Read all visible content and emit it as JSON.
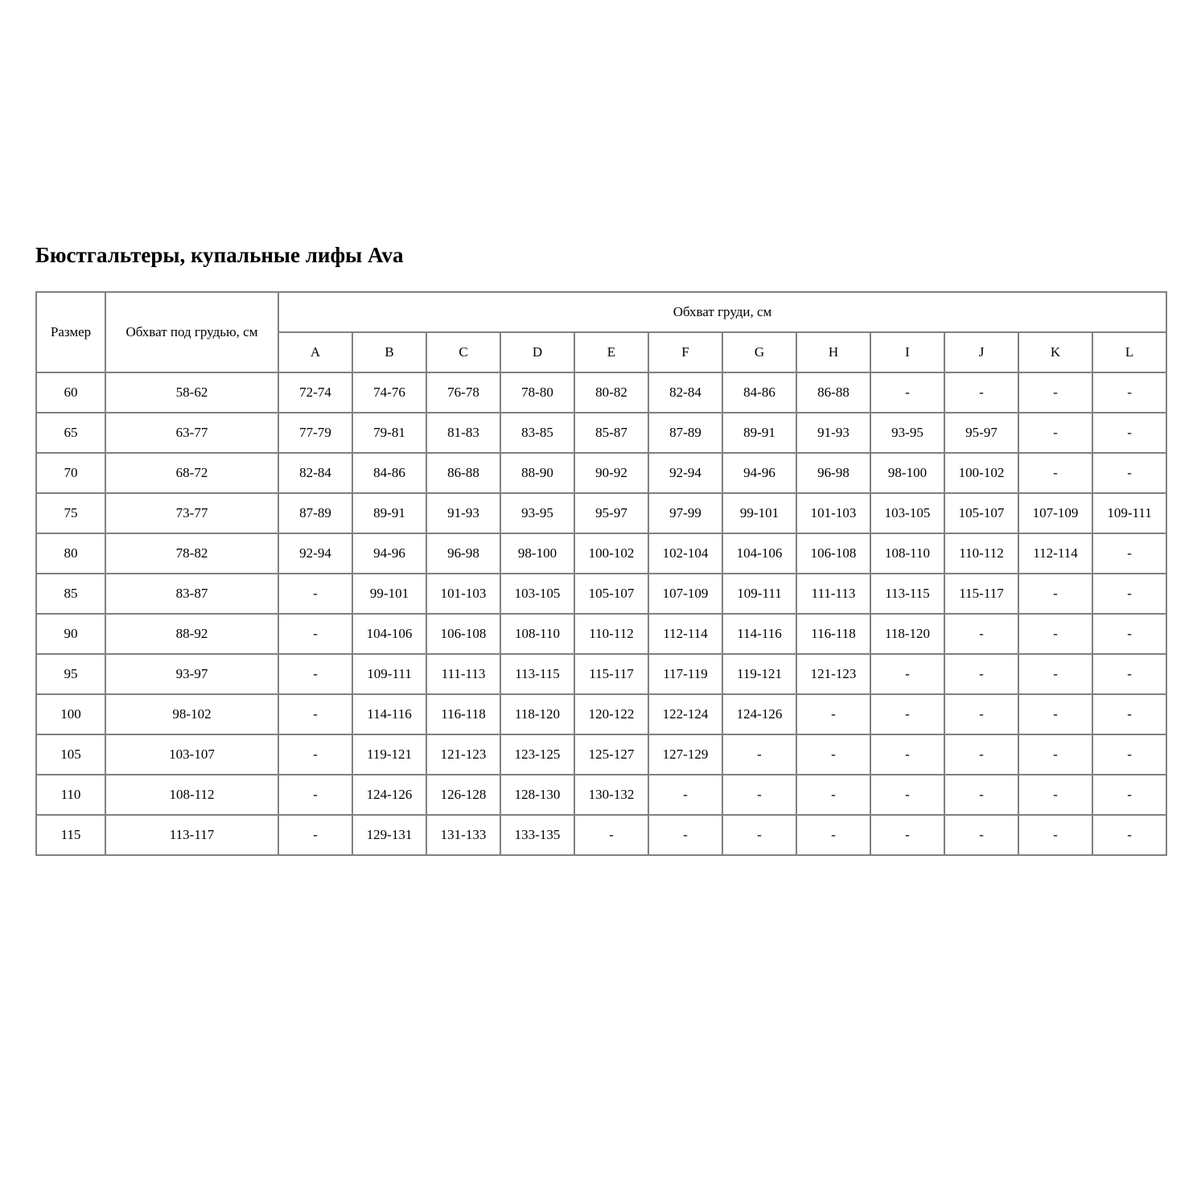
{
  "page": {
    "title": "Бюстгальтеры, купальные лифы Ava"
  },
  "table": {
    "header": {
      "size_label": "Размер",
      "underbust_label": "Обхват под грудью, см",
      "bust_label": "Обхват груди, см",
      "cup_columns": [
        "A",
        "B",
        "C",
        "D",
        "E",
        "F",
        "G",
        "H",
        "I",
        "J",
        "K",
        "L"
      ]
    },
    "rows": [
      {
        "size": "60",
        "underbust": "58-62",
        "cups": [
          "72-74",
          "74-76",
          "76-78",
          "78-80",
          "80-82",
          "82-84",
          "84-86",
          "86-88",
          "-",
          "-",
          "-",
          "-"
        ]
      },
      {
        "size": "65",
        "underbust": "63-77",
        "cups": [
          "77-79",
          "79-81",
          "81-83",
          "83-85",
          "85-87",
          "87-89",
          "89-91",
          "91-93",
          "93-95",
          "95-97",
          "-",
          "-"
        ]
      },
      {
        "size": "70",
        "underbust": "68-72",
        "cups": [
          "82-84",
          "84-86",
          "86-88",
          "88-90",
          "90-92",
          "92-94",
          "94-96",
          "96-98",
          "98-100",
          "100-102",
          "-",
          "-"
        ]
      },
      {
        "size": "75",
        "underbust": "73-77",
        "cups": [
          "87-89",
          "89-91",
          "91-93",
          "93-95",
          "95-97",
          "97-99",
          "99-101",
          "101-103",
          "103-105",
          "105-107",
          "107-109",
          "109-111"
        ]
      },
      {
        "size": "80",
        "underbust": "78-82",
        "cups": [
          "92-94",
          "94-96",
          "96-98",
          "98-100",
          "100-102",
          "102-104",
          "104-106",
          "106-108",
          "108-110",
          "110-112",
          "112-114",
          "-"
        ]
      },
      {
        "size": "85",
        "underbust": "83-87",
        "cups": [
          "-",
          "99-101",
          "101-103",
          "103-105",
          "105-107",
          "107-109",
          "109-111",
          "111-113",
          "113-115",
          "115-117",
          "-",
          "-"
        ]
      },
      {
        "size": "90",
        "underbust": "88-92",
        "cups": [
          "-",
          "104-106",
          "106-108",
          "108-110",
          "110-112",
          "112-114",
          "114-116",
          "116-118",
          "118-120",
          "-",
          "-",
          "-"
        ]
      },
      {
        "size": "95",
        "underbust": "93-97",
        "cups": [
          "-",
          "109-111",
          "111-113",
          "113-115",
          "115-117",
          "117-119",
          "119-121",
          "121-123",
          "-",
          "-",
          "-",
          "-"
        ]
      },
      {
        "size": "100",
        "underbust": "98-102",
        "cups": [
          "-",
          "114-116",
          "116-118",
          "118-120",
          "120-122",
          "122-124",
          "124-126",
          "-",
          "-",
          "-",
          "-",
          "-"
        ]
      },
      {
        "size": "105",
        "underbust": "103-107",
        "cups": [
          "-",
          "119-121",
          "121-123",
          "123-125",
          "125-127",
          "127-129",
          "-",
          "-",
          "-",
          "-",
          "-",
          "-"
        ]
      },
      {
        "size": "110",
        "underbust": "108-112",
        "cups": [
          "-",
          "124-126",
          "126-128",
          "128-130",
          "130-132",
          "-",
          "-",
          "-",
          "-",
          "-",
          "-",
          "-"
        ]
      },
      {
        "size": "115",
        "underbust": "113-117",
        "cups": [
          "-",
          "129-131",
          "131-133",
          "133-135",
          "-",
          "-",
          "-",
          "-",
          "-",
          "-",
          "-",
          "-"
        ]
      }
    ]
  },
  "colors": {
    "table_border": "#808080",
    "text": "#000000",
    "background": "#ffffff"
  }
}
